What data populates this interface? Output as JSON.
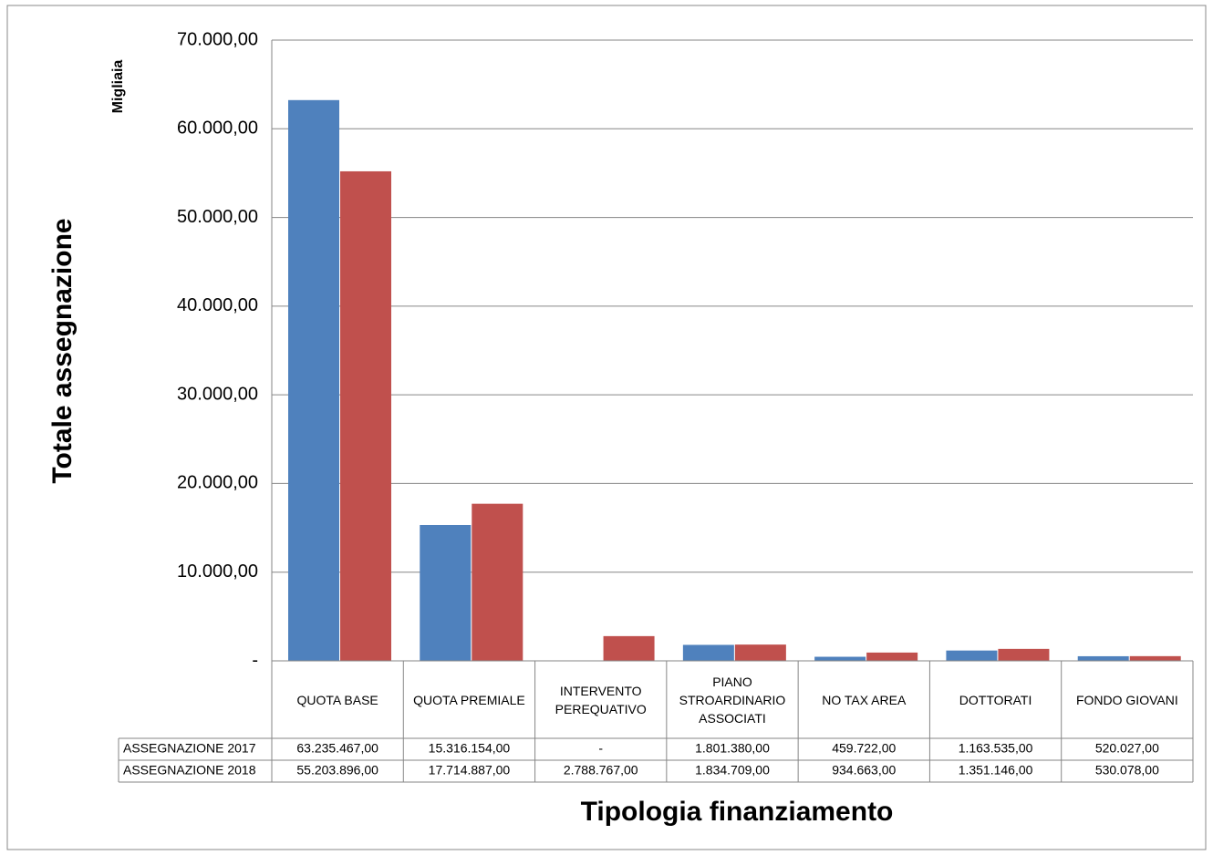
{
  "chart_data": {
    "type": "bar",
    "unit_label": "Migliaia",
    "y_label": "Totale assegnazione",
    "x_label": "Tipologia finanziamento",
    "categories": [
      "QUOTA BASE",
      "QUOTA PREMIALE",
      "INTERVENTO PEREQUATIVO",
      "PIANO STROARDINARIO ASSOCIATI",
      "NO TAX AREA",
      "DOTTORATI",
      "FONDO GIOVANI"
    ],
    "series": [
      {
        "name": "ASSEGNAZIONE 2017",
        "color": "#4f81bd",
        "values": [
          63235.467,
          15316.154,
          0,
          1801.38,
          459.722,
          1163.535,
          520.027
        ],
        "value_labels": [
          "63.235.467,00",
          "15.316.154,00",
          "-",
          "1.801.380,00",
          "459.722,00",
          "1.163.535,00",
          "520.027,00"
        ]
      },
      {
        "name": "ASSEGNAZIONE 2018",
        "color": "#c0504d",
        "values": [
          55203.896,
          17714.887,
          2788.767,
          1834.709,
          934.663,
          1351.146,
          530.078
        ],
        "value_labels": [
          "55.203.896,00",
          "17.714.887,00",
          "2.788.767,00",
          "1.834.709,00",
          "934.663,00",
          "1.351.146,00",
          "530.078,00"
        ]
      }
    ],
    "ylim": [
      0,
      70000
    ],
    "yticks": [
      {
        "value": 0,
        "label": "-"
      },
      {
        "value": 10000,
        "label": "10.000,00"
      },
      {
        "value": 20000,
        "label": "20.000,00"
      },
      {
        "value": 30000,
        "label": "30.000,00"
      },
      {
        "value": 40000,
        "label": "40.000,00"
      },
      {
        "value": 50000,
        "label": "50.000,00"
      },
      {
        "value": 60000,
        "label": "60.000,00"
      },
      {
        "value": 70000,
        "label": "70.000,00"
      }
    ],
    "grid": true
  }
}
